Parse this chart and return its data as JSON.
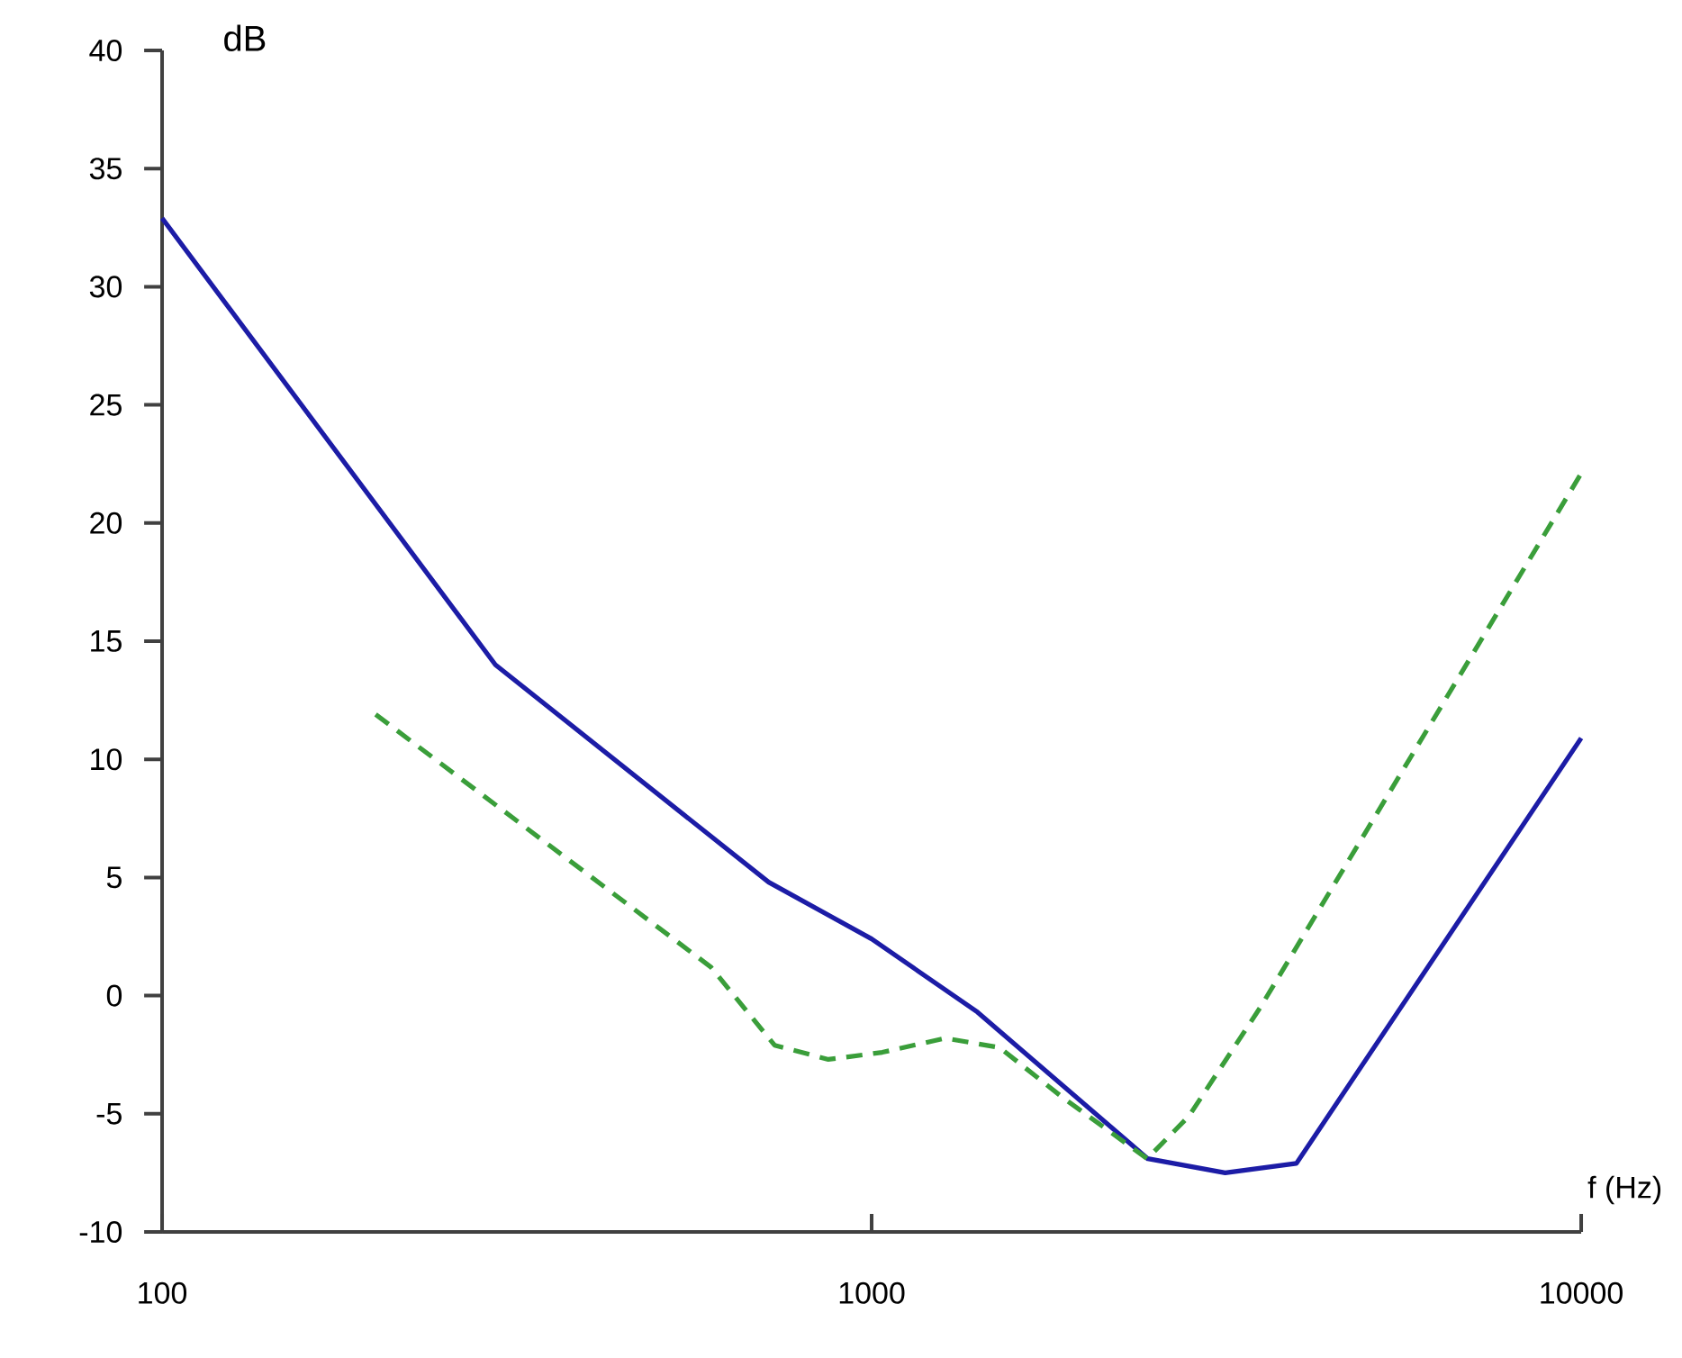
{
  "chart_data": {
    "type": "line",
    "xlabel": "f (Hz)",
    "ylabel": "dB",
    "log": "x",
    "xlim": [
      100,
      10000
    ],
    "xticks": [
      100,
      1000,
      10000
    ],
    "ylim": [
      -10,
      40
    ],
    "yticks": [
      -10,
      -5,
      0,
      5,
      10,
      15,
      20,
      25,
      30,
      35,
      40
    ],
    "series": [
      {
        "color": "#1c1ca6",
        "line_style": "solid",
        "x": [
          100,
          295,
          716,
          1000,
          1410,
          2450,
          3150,
          3970,
          10000
        ],
        "values": [
          32.9,
          14,
          4.8,
          2.4,
          -0.7,
          -6.9,
          -7.5,
          -7.1,
          10.9
        ]
      },
      {
        "color": "#3a9e3a",
        "line_style": "dashed",
        "x": [
          200,
          594,
          730,
          869,
          1035,
          1270,
          1515,
          1857,
          2445,
          2800,
          3530,
          5010,
          10000
        ],
        "values": [
          11.9,
          1.2,
          -2.1,
          -2.7,
          -2.4,
          -1.8,
          -2.2,
          -4.3,
          -6.9,
          -5.1,
          -0.5,
          7.1,
          22.1
        ]
      }
    ]
  }
}
